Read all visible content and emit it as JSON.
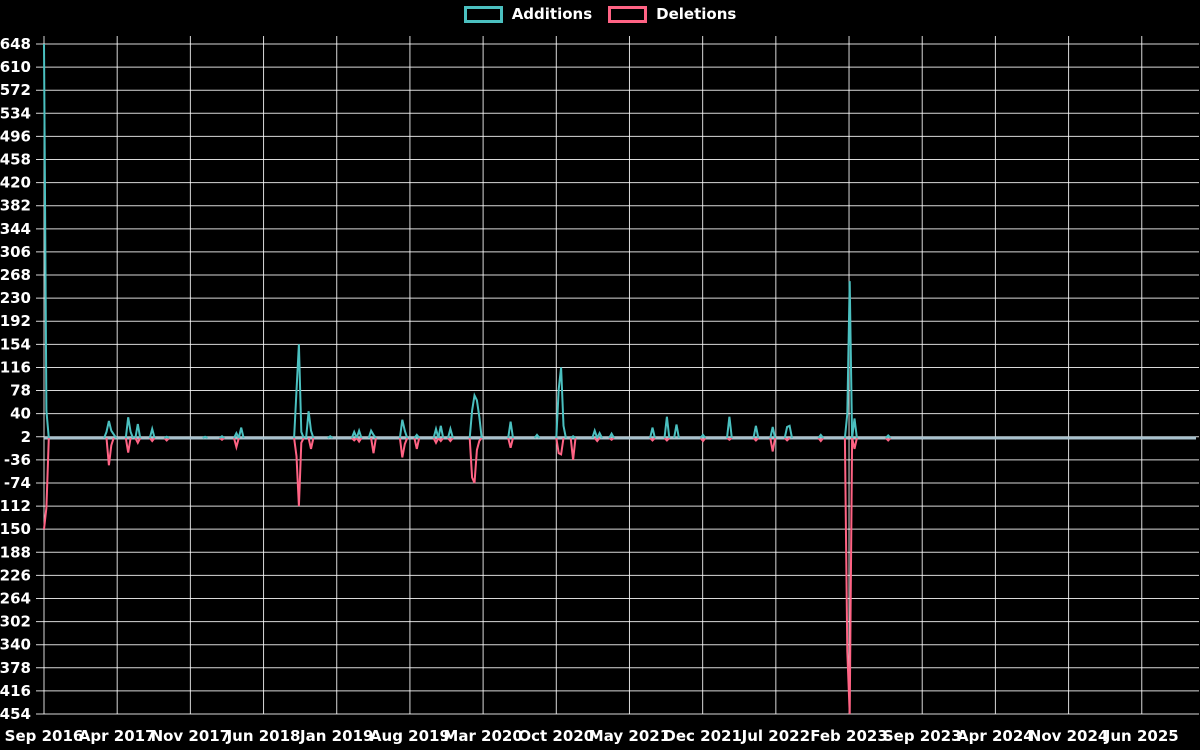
{
  "chart_data": {
    "type": "line",
    "title": "",
    "legend_position": "top",
    "background_color": "#000000",
    "grid": true,
    "grid_color": "#ffffff",
    "text_color": "#ffffff",
    "baseline_color": "#a9c2ce",
    "x_unit": "week",
    "weeks_total": 480,
    "weeks_per_x_tick": 30.43,
    "default_value": 0,
    "ylim": [
      -454,
      648
    ],
    "y_tick_step": 38,
    "y_ticks": [
      648,
      610,
      572,
      534,
      496,
      458,
      420,
      382,
      344,
      306,
      268,
      230,
      192,
      154,
      116,
      78,
      40,
      2,
      -36,
      -74,
      -112,
      -150,
      -188,
      -226,
      -264,
      -302,
      -340,
      -378,
      -416,
      -454
    ],
    "x_tick_labels": [
      "Sep 2016",
      "Apr 2017",
      "Nov 2017",
      "Jun 2018",
      "Jan 2019",
      "Aug 2019",
      "Mar 2020",
      "Oct 2020",
      "May 2021",
      "Dec 2021",
      "Jul 2022",
      "Feb 2023",
      "Sep 2023",
      "Apr 2024",
      "Nov 2024",
      "Jun 2025"
    ],
    "series": [
      {
        "name": "Additions",
        "color": "#4bc0c0",
        "points_sparse": {
          "0": 648,
          "1": 45,
          "26": 10,
          "27": 28,
          "28": 12,
          "29": 6,
          "35": 34,
          "36": 10,
          "39": 23,
          "45": 15,
          "51": 2,
          "67": 2,
          "74": 3,
          "80": 8,
          "82": 17,
          "105": 78,
          "106": 154,
          "107": 10,
          "110": 44,
          "111": 12,
          "119": 3,
          "129": 10,
          "131": 12,
          "136": 12,
          "137": 5,
          "149": 30,
          "150": 12,
          "155": 5,
          "163": 15,
          "165": 20,
          "169": 15,
          "178": 45,
          "179": 70,
          "180": 62,
          "181": 35,
          "194": 27,
          "205": 5,
          "214": 80,
          "215": 116,
          "216": 20,
          "220": 3,
          "229": 12,
          "231": 8,
          "236": 7,
          "253": 17,
          "259": 35,
          "263": 22,
          "274": 5,
          "285": 35,
          "296": 20,
          "303": 18,
          "309": 18,
          "310": 20,
          "323": 5,
          "334": 40,
          "335": 258,
          "337": 32,
          "351": 4
        }
      },
      {
        "name": "Deletions",
        "color": "#ff6384",
        "points_sparse": {
          "0": -150,
          "1": -115,
          "27": -45,
          "28": -12,
          "35": -24,
          "39": -8,
          "45": -5,
          "51": -4,
          "74": -3,
          "80": -15,
          "105": -30,
          "106": -112,
          "107": -8,
          "111": -18,
          "129": -4,
          "131": -6,
          "137": -25,
          "149": -32,
          "150": -10,
          "155": -18,
          "163": -8,
          "165": -5,
          "169": -5,
          "178": -65,
          "179": -74,
          "180": -20,
          "181": -5,
          "194": -16,
          "214": -25,
          "215": -27,
          "220": -36,
          "230": -5,
          "236": -3,
          "253": -4,
          "259": -4,
          "274": -5,
          "285": -3,
          "296": -4,
          "303": -22,
          "309": -4,
          "323": -5,
          "334": -351,
          "335": -454,
          "337": -18,
          "351": -4
        }
      }
    ]
  }
}
